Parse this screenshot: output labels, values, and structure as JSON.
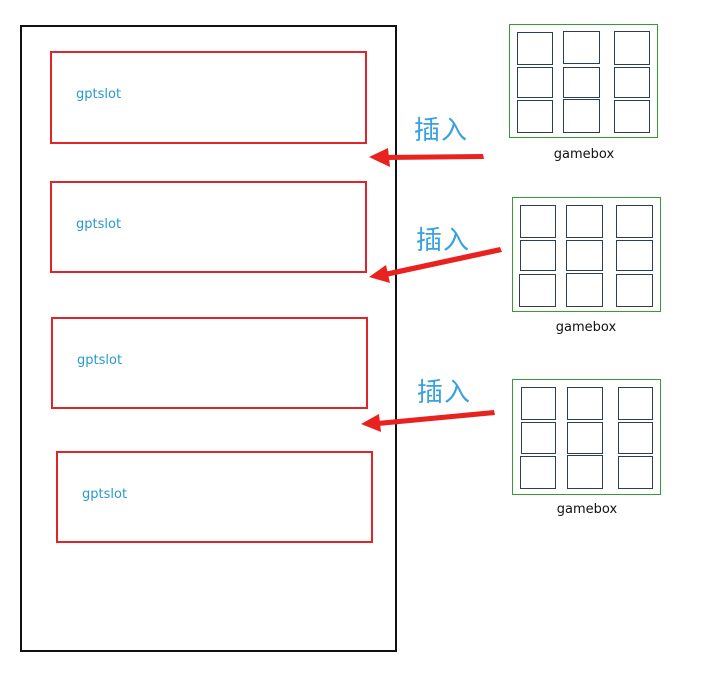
{
  "slots": [
    {
      "label": "gptslot"
    },
    {
      "label": "gptslot"
    },
    {
      "label": "gptslot"
    },
    {
      "label": "gptslot"
    }
  ],
  "gameboxes": [
    {
      "label": "gamebox",
      "insert_label": "插入"
    },
    {
      "label": "gamebox",
      "insert_label": "插入"
    },
    {
      "label": "gamebox",
      "insert_label": "插入"
    }
  ],
  "colors": {
    "slot_border": "#e0242b",
    "slot_text": "#2a99c9",
    "gamebox_border": "#3a9a3a",
    "cell_border": "#2c3e50",
    "arrow": "#e8231f",
    "insert_text": "#3aa0e0"
  }
}
